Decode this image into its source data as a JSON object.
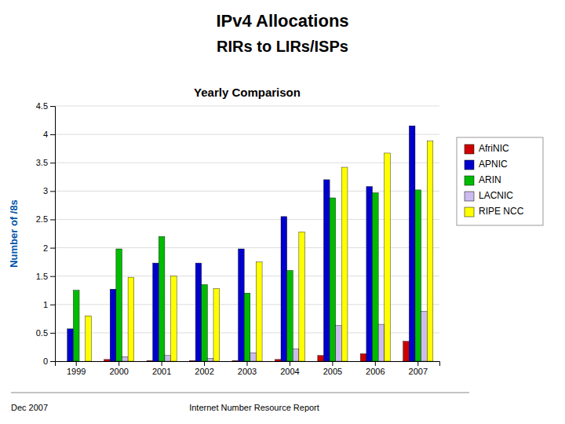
{
  "chart_data": {
    "type": "bar",
    "title": "IPv4 Allocations",
    "subtitle": "RIRs to LIRs/ISPs",
    "annotations": [
      "Yearly Comparison",
      "Dec 2007",
      "Internet Number Resource Report"
    ],
    "y_label": "Number of /8s",
    "categories": [
      "1999",
      "2000",
      "2001",
      "2002",
      "2003",
      "2004",
      "2005",
      "2006",
      "2007"
    ],
    "series": [
      {
        "name": "AfriNIC",
        "color": "#CC0000",
        "values": [
          0.0,
          0.03,
          0.01,
          0.01,
          0.01,
          0.03,
          0.1,
          0.13,
          0.35
        ]
      },
      {
        "name": "APNIC",
        "color": "#0000CC",
        "values": [
          0.57,
          1.27,
          1.73,
          1.73,
          1.98,
          2.55,
          3.2,
          3.08,
          4.15
        ]
      },
      {
        "name": "ARIN",
        "color": "#00BB00",
        "values": [
          1.25,
          1.98,
          2.2,
          1.35,
          1.2,
          1.6,
          2.88,
          2.97,
          3.02
        ]
      },
      {
        "name": "LACNIC",
        "color": "#CCBBEE",
        "values": [
          0.0,
          0.08,
          0.1,
          0.05,
          0.15,
          0.22,
          0.63,
          0.65,
          0.88
        ]
      },
      {
        "name": "RIPE NCC",
        "color": "#FFFF00",
        "values": [
          0.8,
          1.48,
          1.5,
          1.28,
          1.75,
          2.28,
          3.42,
          3.67,
          3.88
        ]
      }
    ],
    "ylim": [
      0,
      4.5
    ],
    "yticks": [
      0,
      0.5,
      1,
      1.5,
      2,
      2.5,
      3,
      3.5,
      4,
      4.5
    ],
    "grid": true,
    "legend": "right"
  }
}
